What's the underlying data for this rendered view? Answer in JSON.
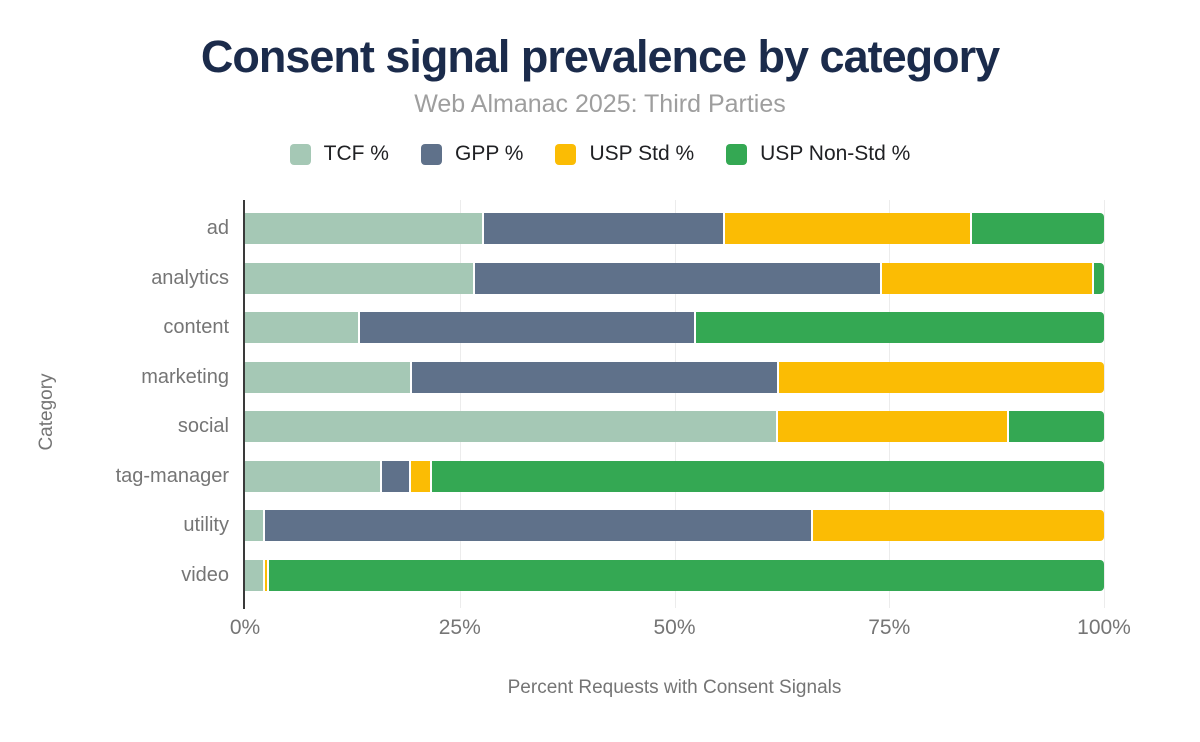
{
  "title": "Consent signal prevalence by category",
  "subtitle": "Web Almanac 2025: Third Parties",
  "colors": {
    "title_text": "#1b2b4b",
    "subtitle_text": "#9e9e9e",
    "axis_text": "#757575",
    "legend_text": "#202124",
    "gridline": "#ececec",
    "axis_line": "#3a3a3a",
    "tcf": "#a5c8b5",
    "gpp": "#5f718a",
    "usp_std": "#fbbc04",
    "usp_nonstd": "#34a853"
  },
  "chart_data": {
    "type": "bar",
    "orientation": "horizontal-stacked",
    "title": "Consent signal prevalence by category",
    "subtitle": "Web Almanac 2025: Third Parties",
    "xlabel": "Percent Requests with Consent Signals",
    "ylabel": "Category",
    "xlim": [
      0,
      100
    ],
    "grid": true,
    "gridlines": [
      25,
      50,
      75,
      100
    ],
    "legend_position": "top",
    "x_ticks": [
      {
        "value": 0,
        "label": "0%"
      },
      {
        "value": 25,
        "label": "25%"
      },
      {
        "value": 50,
        "label": "50%"
      },
      {
        "value": 75,
        "label": "75%"
      },
      {
        "value": 100,
        "label": "100%"
      }
    ],
    "categories": [
      "ad",
      "analytics",
      "content",
      "marketing",
      "social",
      "tag-manager",
      "utility",
      "video"
    ],
    "series": [
      {
        "name": "TCF %",
        "color": "#a5c8b5",
        "values": [
          27.6,
          26.5,
          13.2,
          19.2,
          61.8,
          15.7,
          2.1,
          2.1
        ]
      },
      {
        "name": "GPP %",
        "color": "#5f718a",
        "values": [
          28.1,
          47.4,
          39.1,
          42.7,
          0,
          3.4,
          63.8,
          0
        ]
      },
      {
        "name": "USP Std %",
        "color": "#fbbc04",
        "values": [
          28.7,
          24.7,
          0,
          38.1,
          26.9,
          2.4,
          34.1,
          0.5
        ]
      },
      {
        "name": "USP Non-Std %",
        "color": "#34a853",
        "values": [
          15.6,
          1.4,
          47.7,
          0,
          11.3,
          78.5,
          0,
          97.4
        ]
      }
    ]
  }
}
